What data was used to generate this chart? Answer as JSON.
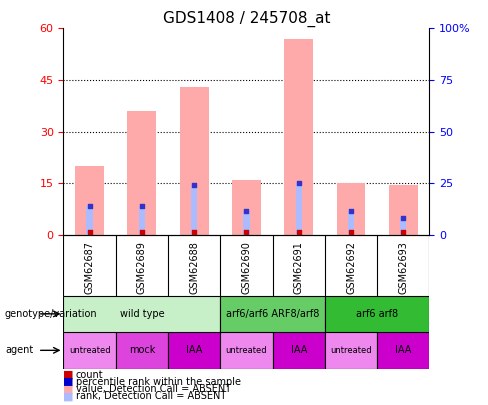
{
  "title": "GDS1408 / 245708_at",
  "samples": [
    "GSM62687",
    "GSM62689",
    "GSM62688",
    "GSM62690",
    "GSM62691",
    "GSM62692",
    "GSM62693"
  ],
  "pink_bars": [
    20,
    36,
    43,
    16,
    57,
    15,
    14.5
  ],
  "blue_bars": [
    8.5,
    8.5,
    14.5,
    7,
    15,
    7,
    5
  ],
  "ylim_left": [
    0,
    60
  ],
  "ylim_right": [
    0,
    100
  ],
  "yticks_left": [
    0,
    15,
    30,
    45,
    60
  ],
  "yticks_right": [
    0,
    25,
    50,
    75,
    100
  ],
  "ytick_labels_right": [
    "0",
    "25",
    "50",
    "75",
    "100%"
  ],
  "genotype_groups": [
    {
      "label": "wild type",
      "span": [
        0,
        3
      ],
      "color": "#c8f0c8"
    },
    {
      "label": "arf6/arf6 ARF8/arf8",
      "span": [
        3,
        5
      ],
      "color": "#66cc66"
    },
    {
      "label": "arf6 arf8",
      "span": [
        5,
        7
      ],
      "color": "#33bb33"
    }
  ],
  "agent_groups": [
    {
      "label": "untreated",
      "span": [
        0,
        1
      ],
      "color": "#ee88ee"
    },
    {
      "label": "mock",
      "span": [
        1,
        2
      ],
      "color": "#dd44dd"
    },
    {
      "label": "IAA",
      "span": [
        2,
        3
      ],
      "color": "#cc00cc"
    },
    {
      "label": "untreated",
      "span": [
        3,
        4
      ],
      "color": "#ee88ee"
    },
    {
      "label": "IAA",
      "span": [
        4,
        5
      ],
      "color": "#cc00cc"
    },
    {
      "label": "untreated",
      "span": [
        5,
        6
      ],
      "color": "#ee88ee"
    },
    {
      "label": "IAA",
      "span": [
        6,
        7
      ],
      "color": "#cc00cc"
    }
  ],
  "legend_items": [
    {
      "label": "count",
      "color": "#cc0000"
    },
    {
      "label": "percentile rank within the sample",
      "color": "#0000cc"
    },
    {
      "label": "value, Detection Call = ABSENT",
      "color": "#ffaaaa"
    },
    {
      "label": "rank, Detection Call = ABSENT",
      "color": "#aabbff"
    }
  ],
  "pink_color": "#ffaaaa",
  "blue_bar_color": "#aabbff",
  "red_dot_color": "#cc0000",
  "blue_dot_color": "#3333cc",
  "title_fontsize": 11
}
